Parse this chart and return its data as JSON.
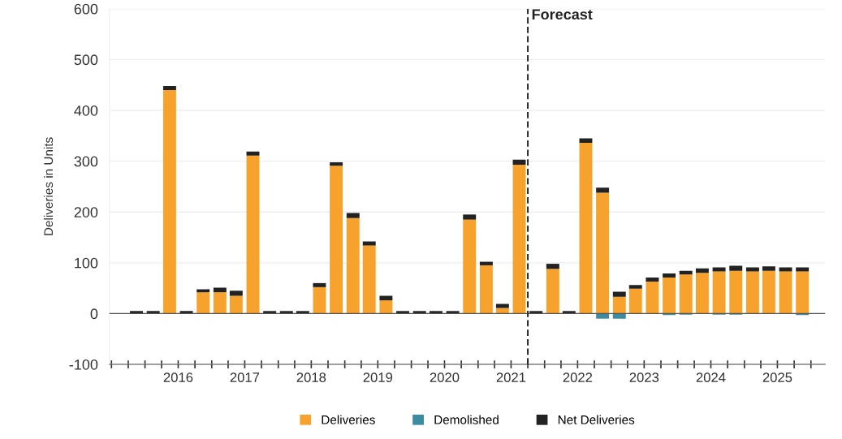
{
  "chart_data": {
    "type": "bar",
    "stacked": true,
    "ylabel": "Deliveries in Units",
    "x": [
      "2015-08-15",
      "2015-11-15",
      "2016-02-15",
      "2016-05-15",
      "2016-08-15",
      "2016-11-15",
      "2017-02-15",
      "2017-05-15",
      "2017-08-15",
      "2017-11-15",
      "2018-02-15",
      "2018-05-15",
      "2018-08-15",
      "2018-11-15",
      "2019-02-15",
      "2019-05-15",
      "2019-08-15",
      "2019-11-15",
      "2020-02-15",
      "2020-05-15",
      "2020-08-15",
      "2020-11-15",
      "2021-02-15",
      "2021-05-15",
      "2021-08-15",
      "2021-11-15",
      "2022-02-15",
      "2022-05-15",
      "2022-08-15",
      "2022-11-15",
      "2023-02-15",
      "2023-05-15",
      "2023-08-15",
      "2023-11-15",
      "2024-02-15",
      "2024-05-15",
      "2024-08-15",
      "2024-11-15",
      "2025-02-15",
      "2025-05-15",
      "2025-08-15",
      "2025-11-15"
    ],
    "series": [
      {
        "name": "Deliveries",
        "color": "#f7a22c",
        "values": [
          0,
          0,
          0,
          440,
          0,
          42,
          42,
          35,
          311,
          0,
          0,
          0,
          52,
          291,
          188,
          134,
          26,
          0,
          0,
          0,
          0,
          185,
          95,
          11,
          293,
          0,
          88,
          0,
          336,
          238,
          33,
          49,
          63,
          71,
          77,
          80,
          83,
          84,
          83,
          84,
          83,
          83
        ]
      },
      {
        "name": "Demolished",
        "color": "#3a8ca3",
        "values": [
          0,
          0,
          0,
          0,
          0,
          0,
          0,
          0,
          0,
          0,
          0,
          0,
          0,
          0,
          0,
          0,
          0,
          0,
          0,
          0,
          0,
          0,
          0,
          0,
          0,
          0,
          0,
          0,
          0,
          -10,
          -10,
          0,
          0,
          -3,
          -2,
          0,
          -2,
          -2,
          0,
          0,
          0,
          -3
        ]
      },
      {
        "name": "Net Deliveries",
        "color": "#222222",
        "values": [
          0,
          5,
          5,
          8,
          5,
          6,
          9,
          10,
          8,
          5,
          5,
          5,
          8,
          7,
          10,
          8,
          9,
          5,
          5,
          5,
          5,
          10,
          7,
          8,
          10,
          5,
          10,
          5,
          9,
          10,
          10,
          7,
          8,
          8,
          7,
          9,
          8,
          10,
          8,
          9,
          8,
          8
        ]
      }
    ],
    "xlim": [
      "2015-06-20",
      "2026-03-20"
    ],
    "xticks": [
      {
        "value": "2015-07-01",
        "label": null
      },
      {
        "value": "2015-10-01",
        "label": null
      },
      {
        "value": "2016-01-01",
        "label": null
      },
      {
        "value": "2016-04-01",
        "label": null
      },
      {
        "value": "2016-07-01",
        "label": "2016"
      },
      {
        "value": "2016-10-01",
        "label": null
      },
      {
        "value": "2017-01-01",
        "label": null
      },
      {
        "value": "2017-04-01",
        "label": null
      },
      {
        "value": "2017-07-01",
        "label": "2017"
      },
      {
        "value": "2017-10-01",
        "label": null
      },
      {
        "value": "2018-01-01",
        "label": null
      },
      {
        "value": "2018-04-01",
        "label": null
      },
      {
        "value": "2018-07-01",
        "label": "2018"
      },
      {
        "value": "2018-10-01",
        "label": null
      },
      {
        "value": "2019-01-01",
        "label": null
      },
      {
        "value": "2019-04-01",
        "label": null
      },
      {
        "value": "2019-07-01",
        "label": "2019"
      },
      {
        "value": "2019-10-01",
        "label": null
      },
      {
        "value": "2020-01-01",
        "label": null
      },
      {
        "value": "2020-04-01",
        "label": null
      },
      {
        "value": "2020-07-01",
        "label": "2020"
      },
      {
        "value": "2020-10-01",
        "label": null
      },
      {
        "value": "2021-01-01",
        "label": null
      },
      {
        "value": "2021-04-01",
        "label": null
      },
      {
        "value": "2021-07-01",
        "label": "2021"
      },
      {
        "value": "2021-10-01",
        "label": null
      },
      {
        "value": "2022-01-01",
        "label": null
      },
      {
        "value": "2022-04-01",
        "label": null
      },
      {
        "value": "2022-07-01",
        "label": "2022"
      },
      {
        "value": "2022-10-01",
        "label": null
      },
      {
        "value": "2023-01-01",
        "label": null
      },
      {
        "value": "2023-04-01",
        "label": null
      },
      {
        "value": "2023-07-01",
        "label": "2023"
      },
      {
        "value": "2023-10-01",
        "label": null
      },
      {
        "value": "2024-01-01",
        "label": null
      },
      {
        "value": "2024-04-01",
        "label": null
      },
      {
        "value": "2024-07-01",
        "label": "2024"
      },
      {
        "value": "2024-10-01",
        "label": null
      },
      {
        "value": "2025-01-01",
        "label": null
      },
      {
        "value": "2025-04-01",
        "label": null
      },
      {
        "value": "2025-07-01",
        "label": "2025"
      },
      {
        "value": "2025-10-01",
        "label": null
      },
      {
        "value": "2026-01-01",
        "label": null
      }
    ],
    "ylim": [
      -100,
      600
    ],
    "yticks": [
      -100,
      0,
      100,
      200,
      300,
      400,
      500,
      600
    ],
    "grid": "y",
    "legend": "bottom",
    "ref_lines": [
      {
        "axis": "y",
        "value": 0,
        "color": "#555555",
        "line_style": "solid"
      },
      {
        "axis": "x",
        "value": "2021-10-01",
        "label": "Forecast",
        "color": "#222222",
        "line_style": "dashed"
      }
    ]
  }
}
